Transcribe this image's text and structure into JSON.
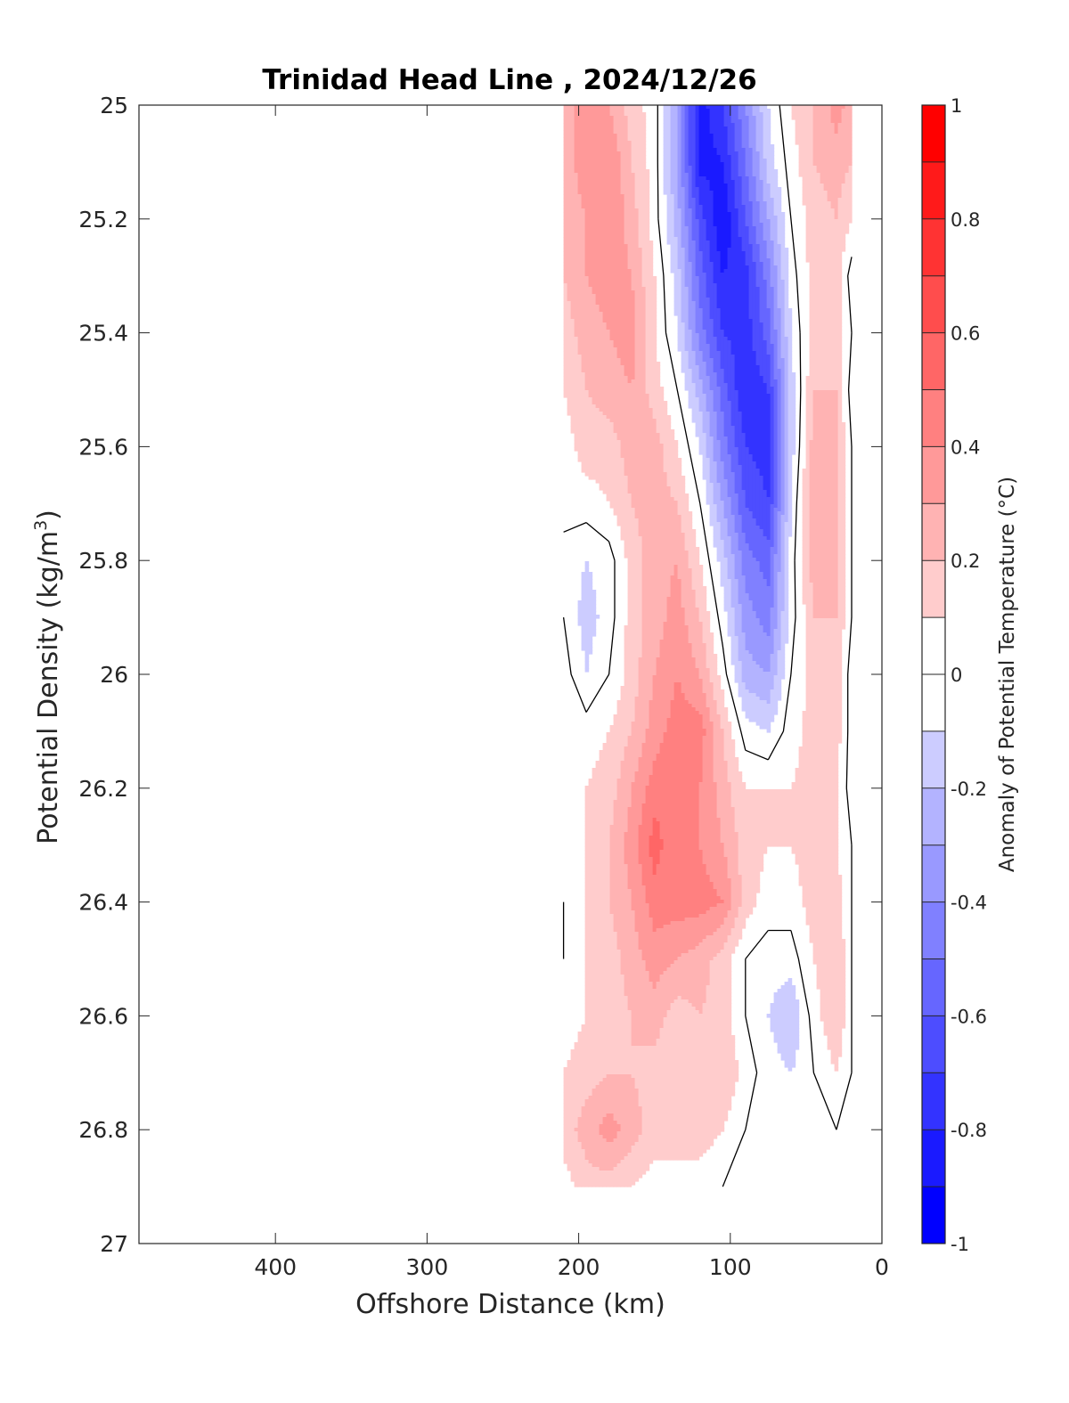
{
  "chart_data": {
    "type": "heatmap",
    "title": "Trinidad Head Line , 2024/12/26",
    "xlabel": "Offshore Distance (km)",
    "ylabel_main": "Potential Density (kg/m",
    "ylabel_sup": "3",
    "ylabel_close": ")",
    "xlim": [
      490,
      0
    ],
    "ylim": [
      25,
      27
    ],
    "x_ticks": [
      400,
      300,
      200,
      100,
      0
    ],
    "y_ticks": [
      25,
      25.2,
      25.4,
      25.6,
      25.8,
      26,
      26.2,
      26.4,
      26.6,
      26.8,
      27
    ],
    "x_tick_labels": [
      "400",
      "300",
      "200",
      "100",
      "0"
    ],
    "y_tick_labels": [
      "25",
      "25.2",
      "25.4",
      "25.6",
      "25.8",
      "26",
      "26.2",
      "26.4",
      "26.6",
      "26.8",
      "27"
    ],
    "colorbar": {
      "label": "Anomaly of Potential Temperature (°C)",
      "range": [
        -1,
        1
      ],
      "step": 0.1,
      "tick_values": [
        1,
        0.8,
        0.6,
        0.4,
        0.2,
        0,
        -0.2,
        -0.4,
        -0.6,
        -0.8,
        -1
      ],
      "tick_labels": [
        "1",
        "0.8",
        "0.6",
        "0.4",
        "0.2",
        "0",
        "-0.2",
        "-0.4",
        "-0.6",
        "-0.8",
        "-1"
      ],
      "colormap": "blue-white-red diverging"
    },
    "grid": false,
    "x_stations": [
      210,
      195,
      180,
      165,
      150,
      135,
      120,
      105,
      90,
      75,
      60,
      45,
      30,
      20
    ],
    "y_levels": [
      25.0,
      25.1,
      25.2,
      25.3,
      25.4,
      25.5,
      25.6,
      25.7,
      25.8,
      25.9,
      26.0,
      26.1,
      26.2,
      26.3,
      26.4,
      26.5,
      26.6,
      26.7,
      26.8,
      26.9
    ],
    "values": [
      [
        0.25,
        0.35,
        0.3,
        0.15,
        0.05,
        -0.3,
        -0.85,
        -0.7,
        -0.4,
        -0.1,
        0.1,
        0.2,
        0.35,
        0.25
      ],
      [
        0.25,
        0.35,
        0.4,
        0.2,
        0.05,
        -0.3,
        -0.85,
        -0.8,
        -0.5,
        -0.15,
        0.05,
        0.2,
        0.25,
        0.2
      ],
      [
        0.25,
        0.3,
        0.4,
        0.25,
        0.05,
        -0.25,
        -0.65,
        -0.9,
        -0.6,
        -0.3,
        0.0,
        0.15,
        0.2,
        0.1
      ],
      [
        0.2,
        0.3,
        0.35,
        0.3,
        0.1,
        -0.15,
        -0.55,
        -0.8,
        -0.75,
        -0.45,
        -0.05,
        0.15,
        0.15,
        -0.05
      ],
      [
        0.15,
        0.25,
        0.3,
        0.35,
        0.1,
        -0.1,
        -0.45,
        -0.7,
        -0.75,
        -0.55,
        -0.1,
        0.15,
        0.15,
        0.0
      ],
      [
        0.1,
        0.2,
        0.25,
        0.3,
        0.15,
        0.0,
        -0.25,
        -0.55,
        -0.8,
        -0.7,
        -0.15,
        0.2,
        0.2,
        -0.05
      ],
      [
        0.05,
        0.15,
        0.15,
        0.25,
        0.25,
        0.1,
        -0.1,
        -0.45,
        -0.7,
        -0.75,
        -0.15,
        0.25,
        0.2,
        0.0
      ],
      [
        0.05,
        0.05,
        0.1,
        0.2,
        0.25,
        0.2,
        0.0,
        -0.3,
        -0.6,
        -0.7,
        -0.1,
        0.3,
        0.2,
        0.0
      ],
      [
        -0.05,
        -0.1,
        -0.05,
        0.15,
        0.25,
        0.3,
        0.1,
        -0.15,
        -0.45,
        -0.55,
        -0.05,
        0.25,
        0.2,
        0.0
      ],
      [
        0.0,
        -0.15,
        -0.05,
        0.15,
        0.25,
        0.35,
        0.2,
        -0.05,
        -0.35,
        -0.45,
        -0.05,
        0.2,
        0.2,
        0.0
      ],
      [
        0.05,
        -0.1,
        0.0,
        0.15,
        0.3,
        0.4,
        0.3,
        0.05,
        -0.25,
        -0.3,
        0.0,
        0.15,
        0.15,
        -0.05
      ],
      [
        0.05,
        0.05,
        0.1,
        0.2,
        0.35,
        0.45,
        0.45,
        0.2,
        -0.05,
        -0.1,
        0.05,
        0.15,
        0.15,
        -0.05
      ],
      [
        0.05,
        0.1,
        0.15,
        0.3,
        0.45,
        0.5,
        0.4,
        0.25,
        0.1,
        0.1,
        0.1,
        0.15,
        0.1,
        -0.05
      ],
      [
        0.05,
        0.1,
        0.2,
        0.35,
        0.55,
        0.4,
        0.4,
        0.3,
        0.15,
        0.1,
        0.1,
        0.15,
        0.1,
        0.0
      ],
      [
        0.0,
        0.1,
        0.2,
        0.3,
        0.45,
        0.45,
        0.45,
        0.4,
        0.15,
        0.05,
        0.05,
        0.15,
        0.15,
        0.0
      ],
      [
        0.0,
        0.1,
        0.15,
        0.25,
        0.35,
        0.3,
        0.25,
        0.15,
        0.0,
        -0.05,
        -0.05,
        0.1,
        0.2,
        0.0
      ],
      [
        0.05,
        0.1,
        0.15,
        0.2,
        0.25,
        0.15,
        0.2,
        0.15,
        0.0,
        -0.1,
        -0.2,
        0.05,
        0.2,
        0.0
      ],
      [
        0.1,
        0.15,
        0.2,
        0.2,
        0.15,
        0.1,
        0.15,
        0.2,
        0.05,
        -0.05,
        -0.1,
        0.0,
        0.1,
        0.0
      ],
      [
        0.15,
        0.25,
        0.35,
        0.25,
        0.15,
        0.1,
        0.15,
        0.1,
        0.0,
        -0.05,
        -0.05,
        0.0,
        0.0,
        0.0
      ],
      [
        0.05,
        0.15,
        0.15,
        0.1,
        0.05,
        0.1,
        0.05,
        0.0,
        -0.1,
        -0.1,
        -0.05,
        0.0,
        0.0,
        0.0
      ]
    ]
  }
}
